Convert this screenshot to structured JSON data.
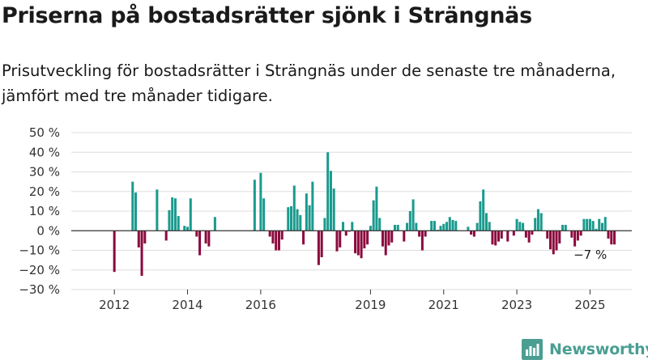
{
  "header": {
    "title": "Priserna på bostadsrätter sjönk i Strängnäs",
    "subtitle": "Prisutveckling för bostadsrätter i Strängnäs under de senaste tre månaderna, jämfört med tre månader tidigare."
  },
  "brand": {
    "name": "Newsworthy",
    "color": "#4a9e92",
    "icon": "newsworthy-bar-chart-icon"
  },
  "colors": {
    "positive": "#1a9a8e",
    "negative": "#8b0a3e",
    "grid": "#dddddd",
    "axis": "#333333",
    "text": "#333333"
  },
  "chart_data": {
    "type": "bar",
    "title": "Priserna på bostadsrätter sjönk i Strängnäs",
    "ylabel": "",
    "xlabel": "",
    "ylim": [
      -30,
      50
    ],
    "yticks": [
      -30,
      -20,
      -10,
      0,
      10,
      20,
      30,
      40,
      50
    ],
    "ytick_labels": [
      "−30 %",
      "−20 %",
      "−10 %",
      "0 %",
      "10 %",
      "20 %",
      "30 %",
      "40 %",
      "50 %"
    ],
    "xticks": [
      {
        "label": "2012",
        "t": 2012.0
      },
      {
        "label": "2014",
        "t": 2014.0
      },
      {
        "label": "2016",
        "t": 2016.0
      },
      {
        "label": "2019",
        "t": 2019.0
      },
      {
        "label": "2021",
        "t": 2021.0
      },
      {
        "label": "2023",
        "t": 2023.0
      },
      {
        "label": "2025",
        "t": 2025.0
      }
    ],
    "x_start": 2012.0,
    "x_step_months": 1,
    "annotation": {
      "text": "−7 %",
      "t": 2024.917,
      "value": -7
    },
    "series": [
      {
        "values": [
          -21,
          null,
          null,
          null,
          null,
          null,
          25,
          19.5,
          -8.5,
          -23,
          -6.5,
          null,
          null,
          null,
          21,
          null,
          null,
          -5,
          10.5,
          17,
          16.5,
          7.5,
          null,
          2.5,
          2,
          16.5,
          null,
          -3,
          -12.5,
          null,
          -6.5,
          -8,
          null,
          7,
          null,
          null,
          null,
          null,
          null,
          null,
          null,
          null,
          null,
          null,
          null,
          null,
          26,
          null,
          29.5,
          16.5,
          null,
          -3,
          -6.5,
          -10,
          -10,
          -4.5,
          null,
          12,
          12.5,
          23,
          11,
          8,
          -7,
          19,
          13,
          25,
          null,
          -17.5,
          -13.5,
          6.5,
          40,
          30.5,
          21.5,
          -10.5,
          -8.5,
          4.5,
          -2.5,
          -0.5,
          4.5,
          -11.5,
          -12.5,
          -14,
          -9,
          -7,
          2.5,
          15.5,
          22.5,
          6.5,
          -8,
          -12.5,
          -7.5,
          -6,
          3,
          3,
          null,
          -5.5,
          4,
          10,
          16,
          4,
          -3,
          -10,
          -3,
          null,
          5,
          5,
          0.5,
          2.5,
          3.5,
          4.5,
          7,
          5.5,
          5,
          null,
          null,
          null,
          2,
          -2,
          -3,
          4,
          15,
          21,
          9,
          4.5,
          -7,
          -7.5,
          -5.5,
          -4,
          null,
          -5.5,
          null,
          -2.5,
          6,
          4.5,
          4,
          -3.5,
          -6,
          -2,
          6.5,
          11,
          9,
          null,
          -4,
          -9.5,
          -12,
          -10,
          -6.5,
          3,
          3,
          null,
          -3.5,
          -8,
          -5,
          -2.5,
          6,
          6,
          6,
          5,
          1,
          6,
          4,
          7,
          -4,
          -7,
          -7
        ]
      }
    ]
  }
}
